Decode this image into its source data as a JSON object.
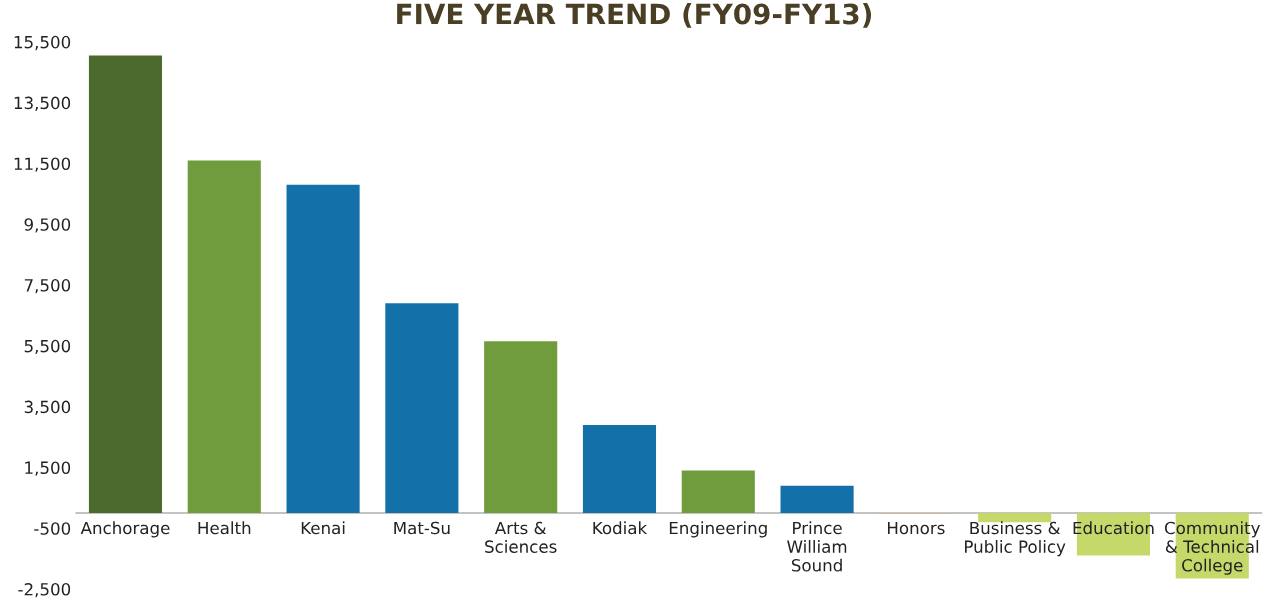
{
  "chart_data": {
    "type": "bar",
    "title": "FIVE YEAR TREND (FY09-FY13)",
    "categories": [
      "Anchorage",
      "Health",
      "Kenai",
      "Mat-Su",
      "Arts &\nSciences",
      "Kodiak",
      "Engineering",
      "Prince\nWilliam\nSound",
      "Honors",
      "Business &\nPublic Policy",
      "Education",
      "Community\n& Technical\nCollege"
    ],
    "values": [
      15050,
      11600,
      10800,
      6900,
      5650,
      2900,
      1400,
      900,
      -30,
      -300,
      -1400,
      -2150
    ],
    "colors": [
      "#4d6a2e",
      "#709c3e",
      "#1370a8",
      "#1370a8",
      "#709c3e",
      "#1370a8",
      "#709c3e",
      "#1370a8",
      "#c9b99b",
      "#c5d96a",
      "#c5d96a",
      "#c5d96a"
    ],
    "ylim": [
      -2500,
      15500
    ],
    "yticks": [
      {
        "value": 15500,
        "label": "15,500"
      },
      {
        "value": 13500,
        "label": "13,500"
      },
      {
        "value": 11500,
        "label": "11,500"
      },
      {
        "value": 9500,
        "label": "9,500"
      },
      {
        "value": 7500,
        "label": "7,500"
      },
      {
        "value": 5500,
        "label": "5,500"
      },
      {
        "value": 3500,
        "label": "3,500"
      },
      {
        "value": 1500,
        "label": "1,500"
      },
      {
        "value": -500,
        "label": "-500"
      },
      {
        "value": -2500,
        "label": "-2,500"
      }
    ],
    "grid": false,
    "legend": false
  }
}
